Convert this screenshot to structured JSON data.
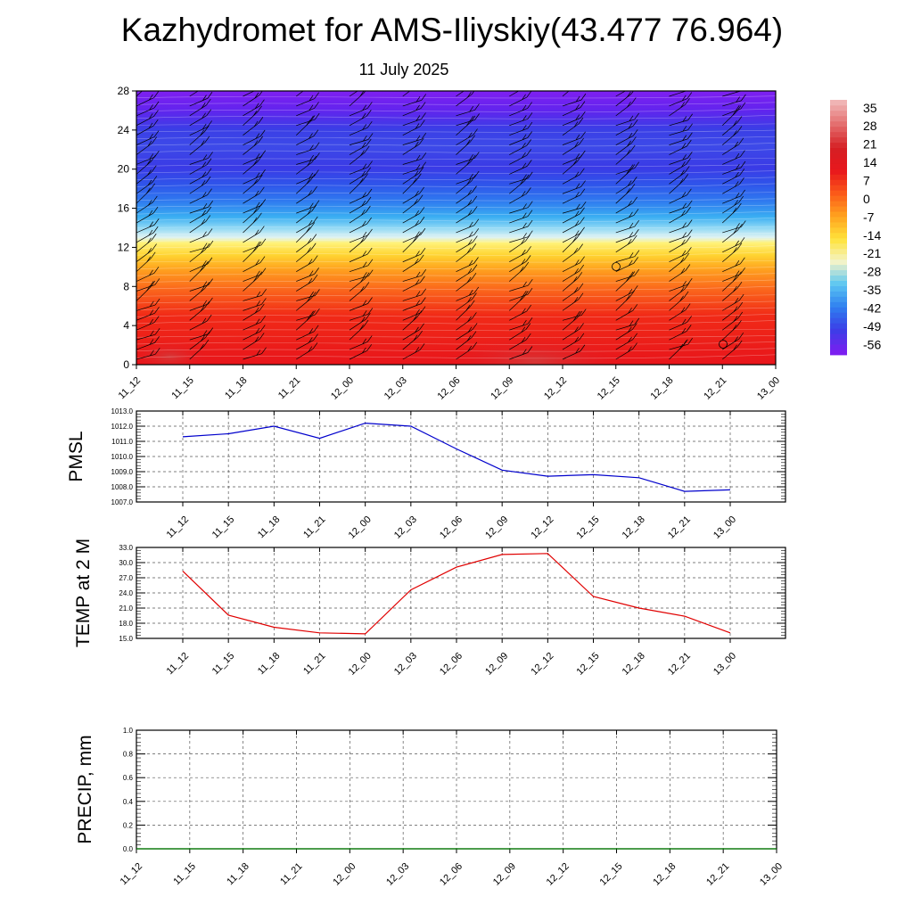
{
  "title": "Kazhydromet for AMS-Iliyskiy(43.477 76.964)",
  "subtitle": "11 July 2025",
  "chart_data": [
    {
      "type": "heatmap",
      "name": "vertical-temperature-section",
      "x_tick_labels": [
        "11_12",
        "11_15",
        "11_18",
        "11_21",
        "12_00",
        "12_03",
        "12_06",
        "12_09",
        "12_12",
        "12_15",
        "12_18",
        "12_21",
        "13_00"
      ],
      "y_tick_labels": [
        "0",
        "4",
        "8",
        "12",
        "16",
        "20",
        "24",
        "28"
      ],
      "ylim": [
        0,
        28
      ],
      "colorbar_labels": [
        "35",
        "28",
        "21",
        "14",
        "7",
        "0",
        "-7",
        "-14",
        "-21",
        "-28",
        "-35",
        "-42",
        "-49",
        "-56"
      ],
      "colorbar_range": [
        -60,
        38
      ],
      "colorbar_colors": [
        "#7b1ff0",
        "#3b3ee6",
        "#2f7ff0",
        "#5bc6f2",
        "#f4f4c8",
        "#ffe23a",
        "#ffa31f",
        "#fb5a19",
        "#e8171c",
        "#d51f24",
        "#e36a6a",
        "#f0b4b4"
      ]
    },
    {
      "type": "line",
      "name": "pmsl",
      "ylabel": "PMSL",
      "x": [
        "11_12",
        "11_15",
        "11_18",
        "11_21",
        "12_00",
        "12_03",
        "12_06",
        "12_09",
        "12_12",
        "12_15",
        "12_18",
        "12_21",
        "13_00"
      ],
      "values": [
        1011.3,
        1011.5,
        1012.0,
        1011.2,
        1012.2,
        1012.0,
        1010.5,
        1009.1,
        1008.7,
        1008.8,
        1008.6,
        1007.7,
        1007.8
      ],
      "ylim": [
        1007.0,
        1013.0
      ],
      "y_tick_labels": [
        "1007.0",
        "1008.0",
        "1009.0",
        "1010.0",
        "1011.0",
        "1012.0",
        "1013.0"
      ],
      "grid": true,
      "color": "#0000cc"
    },
    {
      "type": "line",
      "name": "temp-2m",
      "ylabel": "TEMP at 2 M",
      "x": [
        "11_12",
        "11_15",
        "11_18",
        "11_21",
        "12_00",
        "12_03",
        "12_06",
        "12_09",
        "12_12",
        "12_15",
        "12_18",
        "12_21",
        "13_00"
      ],
      "values": [
        28.3,
        19.6,
        17.2,
        16.1,
        15.9,
        24.6,
        29.1,
        31.6,
        31.8,
        23.3,
        21.0,
        19.4,
        16.1
      ],
      "ylim": [
        15.0,
        33.0
      ],
      "y_tick_labels": [
        "15.0",
        "18.0",
        "21.0",
        "24.0",
        "27.0",
        "30.0",
        "33.0"
      ],
      "grid": true,
      "color": "#e00000"
    },
    {
      "type": "line",
      "name": "precip",
      "ylabel": "PRECIP, mm",
      "x": [
        "11_12",
        "11_15",
        "11_18",
        "11_21",
        "12_00",
        "12_03",
        "12_06",
        "12_09",
        "12_12",
        "12_15",
        "12_18",
        "12_21",
        "13_00"
      ],
      "values": [
        0,
        0,
        0,
        0,
        0,
        0,
        0,
        0,
        0,
        0,
        0,
        0,
        0
      ],
      "ylim": [
        0.0,
        1.0
      ],
      "y_tick_labels": [
        "0.0",
        "0.2",
        "0.4",
        "0.6",
        "0.8",
        "1.0"
      ],
      "grid": true,
      "color": "#008000"
    }
  ]
}
